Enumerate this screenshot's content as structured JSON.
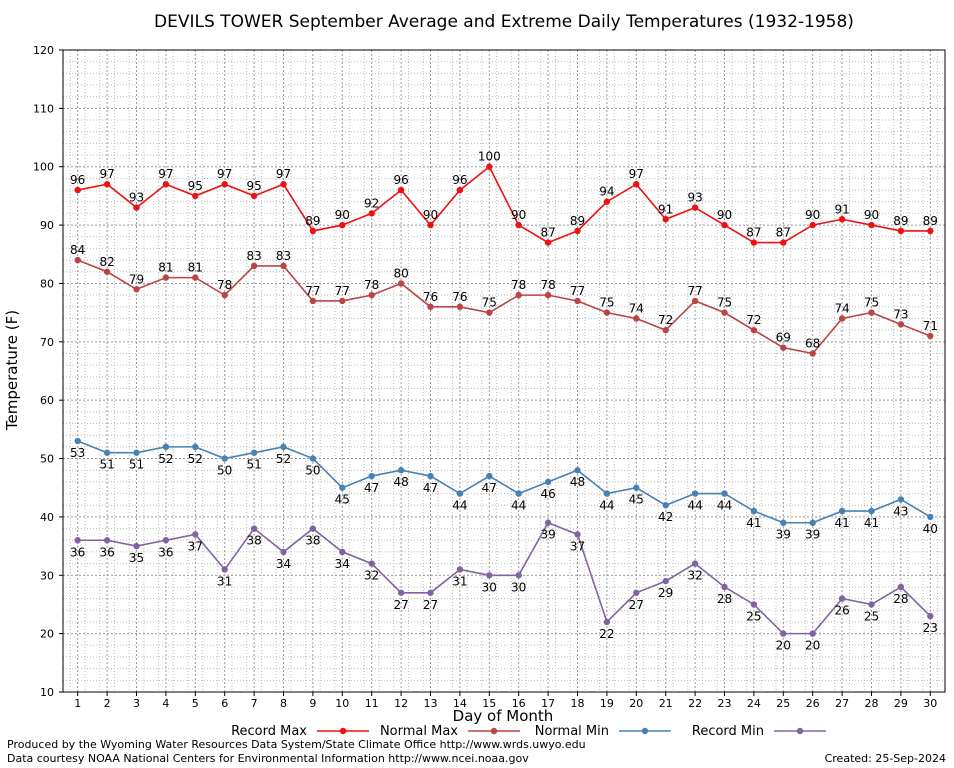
{
  "chart_data": {
    "type": "line",
    "title": "DEVILS TOWER September Average and Extreme Daily Temperatures (1932-1958)",
    "xlabel": "Day of Month",
    "ylabel": "Temperature (F)",
    "ylim": [
      10,
      120
    ],
    "yticks": [
      10,
      20,
      30,
      40,
      50,
      60,
      70,
      80,
      90,
      100,
      110,
      120
    ],
    "xlim": [
      0.5,
      30.5
    ],
    "categories": [
      1,
      2,
      3,
      4,
      5,
      6,
      7,
      8,
      9,
      10,
      11,
      12,
      13,
      14,
      15,
      16,
      17,
      18,
      19,
      20,
      21,
      22,
      23,
      24,
      25,
      26,
      27,
      28,
      29,
      30
    ],
    "grid": true,
    "legend_position": "bottom",
    "series": [
      {
        "name": "Record Max",
        "color": "#ee1111",
        "label_pos": "above",
        "values": [
          96,
          97,
          93,
          97,
          95,
          97,
          95,
          97,
          89,
          90,
          92,
          96,
          90,
          96,
          100,
          90,
          87,
          89,
          94,
          97,
          91,
          93,
          90,
          87,
          87,
          90,
          91,
          90,
          89,
          89
        ]
      },
      {
        "name": "Normal Max",
        "color": "#bb4444",
        "label_pos": "above",
        "values": [
          84,
          82,
          79,
          81,
          81,
          78,
          83,
          83,
          77,
          77,
          78,
          80,
          76,
          76,
          75,
          78,
          78,
          77,
          75,
          74,
          72,
          77,
          75,
          72,
          69,
          68,
          74,
          75,
          73,
          71
        ]
      },
      {
        "name": "Normal Min",
        "color": "#4682b4",
        "label_pos": "below",
        "values": [
          53,
          51,
          51,
          52,
          52,
          50,
          51,
          52,
          50,
          45,
          47,
          48,
          47,
          44,
          47,
          44,
          46,
          48,
          44,
          45,
          42,
          44,
          44,
          41,
          39,
          39,
          41,
          41,
          43,
          40
        ]
      },
      {
        "name": "Record Min",
        "color": "#8064a2",
        "label_pos": "below",
        "values": [
          36,
          36,
          35,
          36,
          37,
          31,
          38,
          34,
          38,
          34,
          32,
          27,
          27,
          31,
          30,
          30,
          39,
          37,
          22,
          27,
          29,
          32,
          28,
          25,
          20,
          20,
          26,
          25,
          28,
          23
        ]
      }
    ]
  },
  "footer": {
    "produced_by": "Produced by the Wyoming Water Resources Data System/State Climate Office http://www.wrds.uwyo.edu",
    "courtesy": "Data courtesy NOAA National Centers for Environmental Information http://www.ncei.noaa.gov",
    "created": "Created:  25-Sep-2024"
  }
}
